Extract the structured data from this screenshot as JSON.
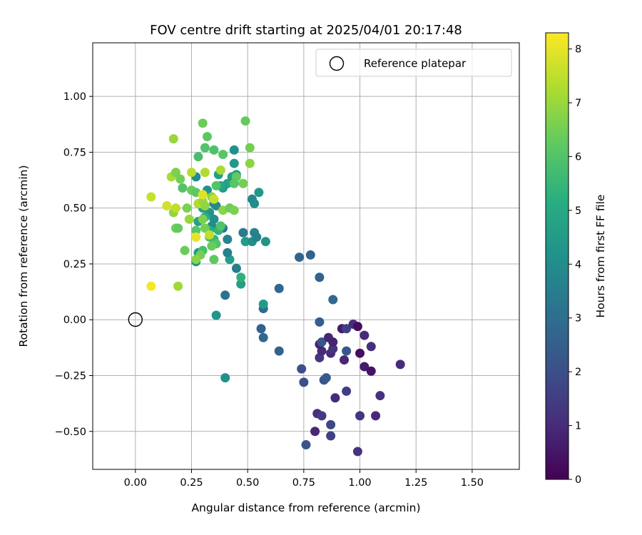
{
  "chart_data": {
    "type": "scatter",
    "title": "FOV centre drift starting at 2025/04/01 20:17:48",
    "xlabel": "Angular distance from reference (arcmin)",
    "ylabel": "Rotation from reference (arcmin)",
    "xlim": [
      -0.19,
      1.71
    ],
    "ylim": [
      -0.67,
      1.24
    ],
    "xticks": [
      0.0,
      0.25,
      0.5,
      0.75,
      1.0,
      1.25,
      1.5
    ],
    "xtick_labels": [
      "0.00",
      "0.25",
      "0.50",
      "0.75",
      "1.00",
      "1.25",
      "1.50"
    ],
    "yticks": [
      -0.5,
      -0.25,
      0.0,
      0.25,
      0.5,
      0.75,
      1.0
    ],
    "ytick_labels": [
      "−0.50",
      "−0.25",
      "0.00",
      "0.25",
      "0.50",
      "0.75",
      "1.00"
    ],
    "grid": true,
    "legend": {
      "position": "top-right",
      "entries": [
        "Reference platepar"
      ]
    },
    "colorbar": {
      "label": "Hours from first FF file",
      "range": [
        0,
        8.3
      ],
      "ticks": [
        0,
        1,
        2,
        3,
        4,
        5,
        6,
        7,
        8
      ],
      "tick_labels": [
        "0",
        "1",
        "2",
        "3",
        "4",
        "5",
        "6",
        "7",
        "8"
      ],
      "colormap": "viridis"
    },
    "reference_point": {
      "name": "Reference platepar",
      "x": 0.0,
      "y": 0.0
    },
    "points": [
      {
        "x": 0.99,
        "y": -0.59,
        "h": 1.2
      },
      {
        "x": 0.76,
        "y": -0.56,
        "h": 2.1
      },
      {
        "x": 0.8,
        "y": -0.5,
        "h": 0.9
      },
      {
        "x": 0.87,
        "y": -0.52,
        "h": 1.6
      },
      {
        "x": 0.87,
        "y": -0.47,
        "h": 1.8
      },
      {
        "x": 0.81,
        "y": -0.42,
        "h": 1.1
      },
      {
        "x": 0.83,
        "y": -0.43,
        "h": 1.4
      },
      {
        "x": 1.0,
        "y": -0.43,
        "h": 1.3
      },
      {
        "x": 1.07,
        "y": -0.43,
        "h": 1.0
      },
      {
        "x": 1.09,
        "y": -0.34,
        "h": 1.2
      },
      {
        "x": 0.89,
        "y": -0.35,
        "h": 1.0
      },
      {
        "x": 0.94,
        "y": -0.32,
        "h": 1.5
      },
      {
        "x": 0.75,
        "y": -0.28,
        "h": 2.0
      },
      {
        "x": 0.84,
        "y": -0.27,
        "h": 2.2
      },
      {
        "x": 0.85,
        "y": -0.26,
        "h": 2.3
      },
      {
        "x": 0.74,
        "y": -0.22,
        "h": 2.0
      },
      {
        "x": 1.02,
        "y": -0.21,
        "h": 0.6
      },
      {
        "x": 1.05,
        "y": -0.23,
        "h": 0.4
      },
      {
        "x": 1.18,
        "y": -0.2,
        "h": 1.0
      },
      {
        "x": 0.93,
        "y": -0.18,
        "h": 0.9
      },
      {
        "x": 0.82,
        "y": -0.17,
        "h": 1.3
      },
      {
        "x": 0.87,
        "y": -0.15,
        "h": 1.0
      },
      {
        "x": 0.88,
        "y": -0.13,
        "h": 1.2
      },
      {
        "x": 0.83,
        "y": -0.14,
        "h": 1.0
      },
      {
        "x": 0.94,
        "y": -0.14,
        "h": 2.2
      },
      {
        "x": 1.0,
        "y": -0.15,
        "h": 0.3
      },
      {
        "x": 1.05,
        "y": -0.12,
        "h": 1.1
      },
      {
        "x": 0.82,
        "y": -0.11,
        "h": 0.8
      },
      {
        "x": 0.83,
        "y": -0.1,
        "h": 2.2
      },
      {
        "x": 0.86,
        "y": -0.08,
        "h": 0.9
      },
      {
        "x": 0.88,
        "y": -0.1,
        "h": 0.8
      },
      {
        "x": 1.02,
        "y": -0.07,
        "h": 1.0
      },
      {
        "x": 0.92,
        "y": -0.04,
        "h": 0.6
      },
      {
        "x": 0.94,
        "y": -0.04,
        "h": 1.6
      },
      {
        "x": 0.97,
        "y": -0.02,
        "h": 1.1
      },
      {
        "x": 0.99,
        "y": -0.03,
        "h": 0.3
      },
      {
        "x": 0.82,
        "y": -0.01,
        "h": 2.5
      },
      {
        "x": 0.56,
        "y": -0.04,
        "h": 2.6
      },
      {
        "x": 0.57,
        "y": -0.08,
        "h": 2.8
      },
      {
        "x": 0.64,
        "y": -0.14,
        "h": 2.6
      },
      {
        "x": 0.4,
        "y": -0.26,
        "h": 4.2
      },
      {
        "x": 0.36,
        "y": 0.02,
        "h": 4.3
      },
      {
        "x": 0.4,
        "y": 0.11,
        "h": 3.1
      },
      {
        "x": 0.57,
        "y": 0.05,
        "h": 2.9
      },
      {
        "x": 0.64,
        "y": 0.14,
        "h": 2.8
      },
      {
        "x": 0.57,
        "y": 0.07,
        "h": 4.5
      },
      {
        "x": 0.88,
        "y": 0.09,
        "h": 2.8
      },
      {
        "x": 0.82,
        "y": 0.19,
        "h": 2.6
      },
      {
        "x": 0.73,
        "y": 0.28,
        "h": 2.7
      },
      {
        "x": 0.78,
        "y": 0.29,
        "h": 2.6
      },
      {
        "x": 0.47,
        "y": 0.16,
        "h": 4.6
      },
      {
        "x": 0.47,
        "y": 0.19,
        "h": 5.3
      },
      {
        "x": 0.45,
        "y": 0.23,
        "h": 3.5
      },
      {
        "x": 0.42,
        "y": 0.27,
        "h": 4.6
      },
      {
        "x": 0.41,
        "y": 0.3,
        "h": 3.6
      },
      {
        "x": 0.41,
        "y": 0.36,
        "h": 3.7
      },
      {
        "x": 0.39,
        "y": 0.41,
        "h": 3.3
      },
      {
        "x": 0.48,
        "y": 0.39,
        "h": 3.4
      },
      {
        "x": 0.49,
        "y": 0.35,
        "h": 4.5
      },
      {
        "x": 0.52,
        "y": 0.35,
        "h": 4.0
      },
      {
        "x": 0.53,
        "y": 0.39,
        "h": 3.7
      },
      {
        "x": 0.54,
        "y": 0.37,
        "h": 3.6
      },
      {
        "x": 0.58,
        "y": 0.35,
        "h": 4.3
      },
      {
        "x": 0.52,
        "y": 0.54,
        "h": 3.8
      },
      {
        "x": 0.53,
        "y": 0.52,
        "h": 4.0
      },
      {
        "x": 0.55,
        "y": 0.57,
        "h": 4.4
      },
      {
        "x": 0.44,
        "y": 0.76,
        "h": 4.2
      },
      {
        "x": 0.44,
        "y": 0.7,
        "h": 4.4
      },
      {
        "x": 0.45,
        "y": 0.65,
        "h": 4.5
      },
      {
        "x": 0.43,
        "y": 0.64,
        "h": 4.7
      },
      {
        "x": 0.41,
        "y": 0.61,
        "h": 4.8
      },
      {
        "x": 0.39,
        "y": 0.59,
        "h": 4.5
      },
      {
        "x": 0.37,
        "y": 0.65,
        "h": 4.6
      },
      {
        "x": 0.38,
        "y": 0.6,
        "h": 4.9
      },
      {
        "x": 0.35,
        "y": 0.52,
        "h": 3.8
      },
      {
        "x": 0.36,
        "y": 0.51,
        "h": 3.9
      },
      {
        "x": 0.35,
        "y": 0.45,
        "h": 4.1
      },
      {
        "x": 0.33,
        "y": 0.48,
        "h": 4.3
      },
      {
        "x": 0.34,
        "y": 0.42,
        "h": 4.0
      },
      {
        "x": 0.32,
        "y": 0.58,
        "h": 4.1
      },
      {
        "x": 0.3,
        "y": 0.5,
        "h": 4.6
      },
      {
        "x": 0.28,
        "y": 0.44,
        "h": 4.7
      },
      {
        "x": 0.27,
        "y": 0.64,
        "h": 4.0
      },
      {
        "x": 0.27,
        "y": 0.26,
        "h": 4.3
      },
      {
        "x": 0.28,
        "y": 0.3,
        "h": 4.5
      },
      {
        "x": 0.3,
        "y": 0.31,
        "h": 5.8
      },
      {
        "x": 0.31,
        "y": 0.46,
        "h": 5.2
      },
      {
        "x": 0.33,
        "y": 0.37,
        "h": 5.9
      },
      {
        "x": 0.33,
        "y": 0.4,
        "h": 5.1
      },
      {
        "x": 0.35,
        "y": 0.36,
        "h": 5.5
      },
      {
        "x": 0.37,
        "y": 0.4,
        "h": 5.4
      },
      {
        "x": 0.38,
        "y": 0.42,
        "h": 6.0
      },
      {
        "x": 0.35,
        "y": 0.27,
        "h": 6.2
      },
      {
        "x": 0.36,
        "y": 0.34,
        "h": 6.0
      },
      {
        "x": 0.34,
        "y": 0.33,
        "h": 6.4
      },
      {
        "x": 0.29,
        "y": 0.29,
        "h": 6.5
      },
      {
        "x": 0.27,
        "y": 0.27,
        "h": 6.8
      },
      {
        "x": 0.27,
        "y": 0.4,
        "h": 6.1
      },
      {
        "x": 0.3,
        "y": 0.45,
        "h": 6.6
      },
      {
        "x": 0.31,
        "y": 0.41,
        "h": 6.5
      },
      {
        "x": 0.33,
        "y": 0.38,
        "h": 7.5
      },
      {
        "x": 0.27,
        "y": 0.37,
        "h": 8.0
      },
      {
        "x": 0.22,
        "y": 0.31,
        "h": 6.4
      },
      {
        "x": 0.18,
        "y": 0.41,
        "h": 6.5
      },
      {
        "x": 0.19,
        "y": 0.41,
        "h": 6.3
      },
      {
        "x": 0.23,
        "y": 0.5,
        "h": 6.6
      },
      {
        "x": 0.24,
        "y": 0.45,
        "h": 7.0
      },
      {
        "x": 0.25,
        "y": 0.58,
        "h": 6.4
      },
      {
        "x": 0.27,
        "y": 0.57,
        "h": 6.2
      },
      {
        "x": 0.28,
        "y": 0.52,
        "h": 7.2
      },
      {
        "x": 0.29,
        "y": 0.52,
        "h": 7.4
      },
      {
        "x": 0.3,
        "y": 0.53,
        "h": 7.0
      },
      {
        "x": 0.3,
        "y": 0.56,
        "h": 7.9
      },
      {
        "x": 0.31,
        "y": 0.51,
        "h": 6.9
      },
      {
        "x": 0.34,
        "y": 0.55,
        "h": 6.8
      },
      {
        "x": 0.35,
        "y": 0.54,
        "h": 7.6
      },
      {
        "x": 0.39,
        "y": 0.49,
        "h": 6.8
      },
      {
        "x": 0.42,
        "y": 0.5,
        "h": 6.4
      },
      {
        "x": 0.44,
        "y": 0.49,
        "h": 6.6
      },
      {
        "x": 0.48,
        "y": 0.61,
        "h": 6.5
      },
      {
        "x": 0.45,
        "y": 0.64,
        "h": 6.3
      },
      {
        "x": 0.44,
        "y": 0.61,
        "h": 6.1
      },
      {
        "x": 0.38,
        "y": 0.67,
        "h": 7.2
      },
      {
        "x": 0.36,
        "y": 0.6,
        "h": 6.0
      },
      {
        "x": 0.31,
        "y": 0.66,
        "h": 7.3
      },
      {
        "x": 0.28,
        "y": 0.73,
        "h": 5.8
      },
      {
        "x": 0.31,
        "y": 0.77,
        "h": 6.0
      },
      {
        "x": 0.35,
        "y": 0.76,
        "h": 5.9
      },
      {
        "x": 0.39,
        "y": 0.74,
        "h": 6.1
      },
      {
        "x": 0.32,
        "y": 0.82,
        "h": 6.2
      },
      {
        "x": 0.3,
        "y": 0.88,
        "h": 6.4
      },
      {
        "x": 0.49,
        "y": 0.89,
        "h": 6.3
      },
      {
        "x": 0.51,
        "y": 0.77,
        "h": 6.5
      },
      {
        "x": 0.51,
        "y": 0.7,
        "h": 6.8
      },
      {
        "x": 0.17,
        "y": 0.81,
        "h": 7.0
      },
      {
        "x": 0.16,
        "y": 0.64,
        "h": 7.2
      },
      {
        "x": 0.18,
        "y": 0.66,
        "h": 6.6
      },
      {
        "x": 0.2,
        "y": 0.63,
        "h": 6.5
      },
      {
        "x": 0.21,
        "y": 0.59,
        "h": 6.0
      },
      {
        "x": 0.25,
        "y": 0.66,
        "h": 7.4
      },
      {
        "x": 0.17,
        "y": 0.48,
        "h": 6.9
      },
      {
        "x": 0.18,
        "y": 0.5,
        "h": 7.5
      },
      {
        "x": 0.14,
        "y": 0.51,
        "h": 7.7
      },
      {
        "x": 0.07,
        "y": 0.55,
        "h": 7.6
      },
      {
        "x": 0.19,
        "y": 0.15,
        "h": 7.1
      },
      {
        "x": 0.07,
        "y": 0.15,
        "h": 8.2
      }
    ]
  }
}
